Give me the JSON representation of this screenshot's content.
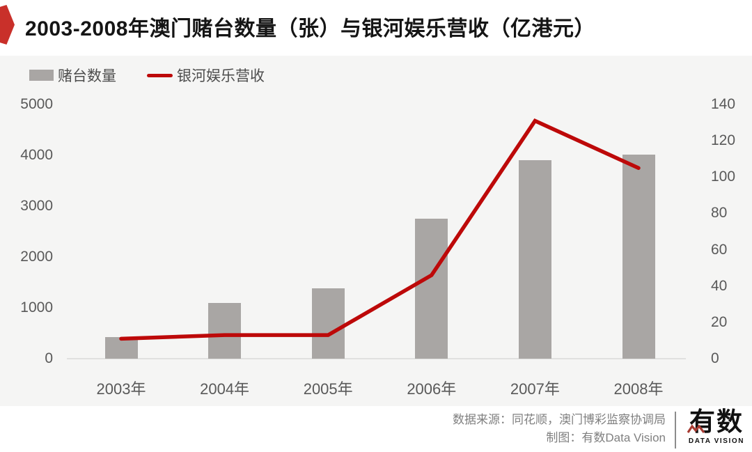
{
  "header": {
    "title": "2003-2008年澳门赌台数量（张）与银河娱乐营收（亿港元）"
  },
  "legend": [
    {
      "label": "赌台数量",
      "type": "bar"
    },
    {
      "label": "银河娱乐营收",
      "type": "line"
    }
  ],
  "chart_data": {
    "type": "bar+line combo",
    "categories": [
      "2003年",
      "2004年",
      "2005年",
      "2006年",
      "2007年",
      "2008年"
    ],
    "series": [
      {
        "name": "赌台数量",
        "type": "bar",
        "axis": "left",
        "values": [
          420,
          1090,
          1390,
          2760,
          3900,
          4020
        ]
      },
      {
        "name": "银河娱乐营收",
        "type": "line",
        "axis": "right",
        "values": [
          11,
          13,
          13,
          46,
          131,
          105
        ]
      }
    ],
    "left_axis": {
      "range": [
        0,
        5000
      ],
      "ticks": [
        0,
        1000,
        2000,
        3000,
        4000,
        5000
      ]
    },
    "right_axis": {
      "range": [
        0,
        140
      ],
      "ticks": [
        0,
        20,
        40,
        60,
        80,
        100,
        120,
        140
      ]
    },
    "grid": false,
    "legend_position": "top-left"
  },
  "colors": {
    "badge_red": "#c9302a",
    "line_red": "#bd0909",
    "bar_gray": "#a9a6a4",
    "logo_zigzag_red": "#a83b32"
  },
  "footer": {
    "source": "数据来源：同花顺，澳门博彩监察协调局",
    "credit": "制图：有数Data Vision",
    "logo_text": "有数",
    "logo_subtext": "DATA VISION"
  }
}
